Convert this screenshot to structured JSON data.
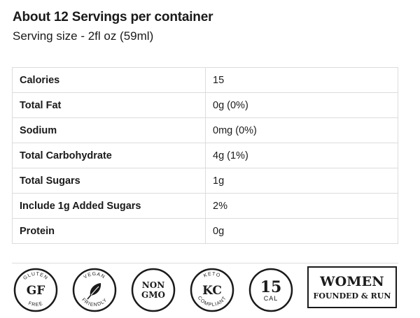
{
  "header": {
    "servings": "About 12 Servings per container",
    "serving_size": "Serving size - 2fl oz (59ml)"
  },
  "nutrition": [
    {
      "label": "Calories",
      "value": "15"
    },
    {
      "label": "Total Fat",
      "value": "0g (0%)"
    },
    {
      "label": "Sodium",
      "value": "0mg (0%)"
    },
    {
      "label": "Total Carbohydrate",
      "value": "4g (1%)"
    },
    {
      "label": "Total Sugars",
      "value": "1g"
    },
    {
      "label": "Include 1g Added Sugars",
      "value": "2%"
    },
    {
      "label": "Protein",
      "value": "0g"
    }
  ],
  "badges": {
    "gluten_free": {
      "top": "GLUTEN",
      "main": "GF",
      "bottom": "FREE"
    },
    "vegan": {
      "top": "VEGAN",
      "bottom": "FRIENDLY",
      "icon": "leaf-icon"
    },
    "non_gmo": {
      "line1": "NON",
      "line2": "GMO"
    },
    "keto": {
      "top": "KETO",
      "main": "KC",
      "bottom": "COMPLIANT"
    },
    "calories": {
      "main": "15",
      "bottom": "CAL"
    },
    "women": {
      "line1": "WOMEN",
      "line2": "FOUNDED & RUN"
    }
  }
}
